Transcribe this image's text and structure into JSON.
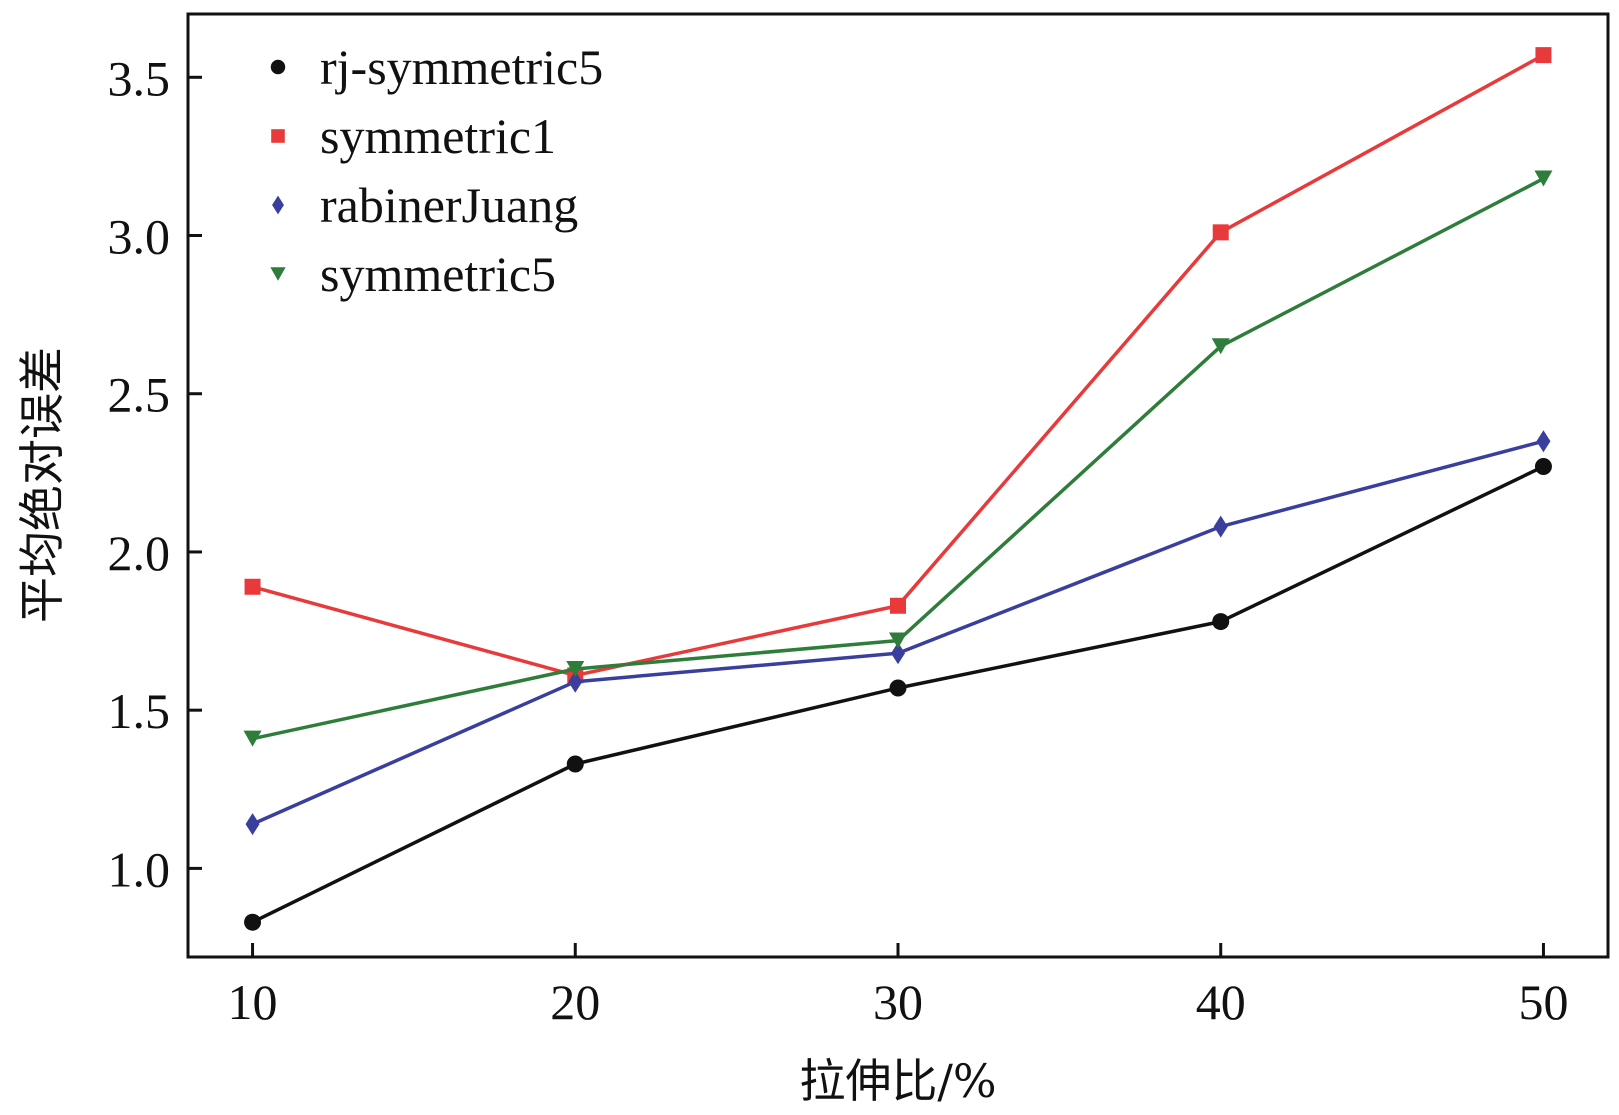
{
  "chart_data": {
    "type": "line",
    "title": "",
    "xlabel": "拉伸比/%",
    "ylabel": "平均绝对误差",
    "x": [
      10,
      20,
      30,
      40,
      50
    ],
    "xlim": [
      8,
      52
    ],
    "ylim": [
      0.72,
      3.7
    ],
    "xticks": [
      10,
      20,
      30,
      40,
      50
    ],
    "xtick_labels": [
      "10",
      "20",
      "30",
      "40",
      "50"
    ],
    "yticks": [
      1.0,
      1.5,
      2.0,
      2.5,
      3.0,
      3.5
    ],
    "ytick_labels": [
      "1.0",
      "1.5",
      "2.0",
      "2.5",
      "3.0",
      "3.5"
    ],
    "grid": false,
    "legend_position": "top-left",
    "series": [
      {
        "name": "rj-symmetric5",
        "color": "#111111",
        "marker": "circle",
        "values": [
          0.83,
          1.33,
          1.57,
          1.78,
          2.27
        ]
      },
      {
        "name": "symmetric1",
        "color": "#e83a3a",
        "marker": "square",
        "values": [
          1.89,
          1.61,
          1.83,
          3.01,
          3.57
        ]
      },
      {
        "name": "rabinerJuang",
        "color": "#3a3f9e",
        "marker": "diamond",
        "values": [
          1.14,
          1.59,
          1.68,
          2.08,
          2.35
        ]
      },
      {
        "name": "symmetric5",
        "color": "#2e7d3a",
        "marker": "triangle-down",
        "values": [
          1.41,
          1.63,
          1.72,
          2.65,
          3.18
        ]
      }
    ]
  }
}
